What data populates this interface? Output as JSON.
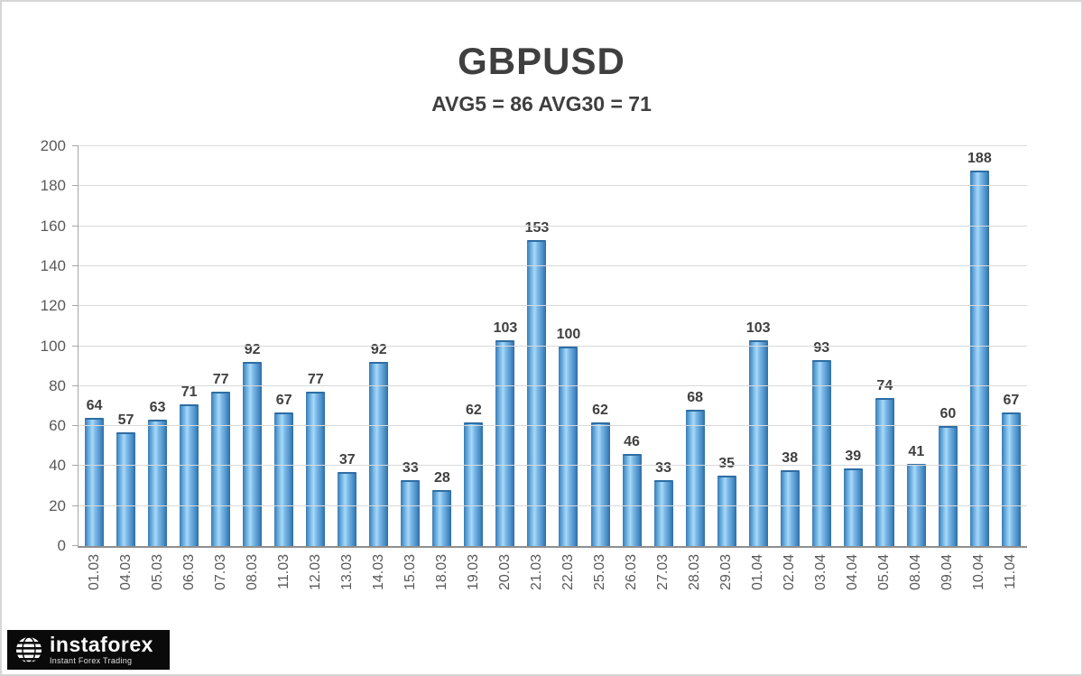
{
  "chart_data": {
    "type": "bar",
    "title": "GBPUSD",
    "subtitle": "AVG5 = 86 AVG30 = 71",
    "categories": [
      "01.03",
      "04.03",
      "05.03",
      "06.03",
      "07.03",
      "08.03",
      "11.03",
      "12.03",
      "13.03",
      "14.03",
      "15.03",
      "18.03",
      "19.03",
      "20.03",
      "21.03",
      "22.03",
      "25.03",
      "26.03",
      "27.03",
      "28.03",
      "29.03",
      "01.04",
      "02.04",
      "03.04",
      "04.04",
      "05.04",
      "08.04",
      "09.04",
      "10.04",
      "11.04"
    ],
    "values": [
      64,
      57,
      63,
      71,
      77,
      92,
      67,
      77,
      37,
      92,
      33,
      28,
      62,
      103,
      153,
      100,
      62,
      46,
      33,
      68,
      35,
      103,
      38,
      93,
      39,
      74,
      41,
      60,
      188,
      67
    ],
    "xlabel": "",
    "ylabel": "",
    "ylim": [
      0,
      200
    ],
    "y_ticks": [
      0,
      20,
      40,
      60,
      80,
      100,
      120,
      140,
      160,
      180,
      200
    ],
    "grid": true,
    "legend": false,
    "colors": {
      "bar": "#5b9bd5",
      "bar_edge": "#2e6da4",
      "gridline": "#d9d9d9",
      "axis": "#8f8f8f",
      "title_text": "#3f3f3f",
      "tick_text": "#595959"
    }
  },
  "logo": {
    "name": "instaforex",
    "tagline": "Instant Forex Trading"
  }
}
